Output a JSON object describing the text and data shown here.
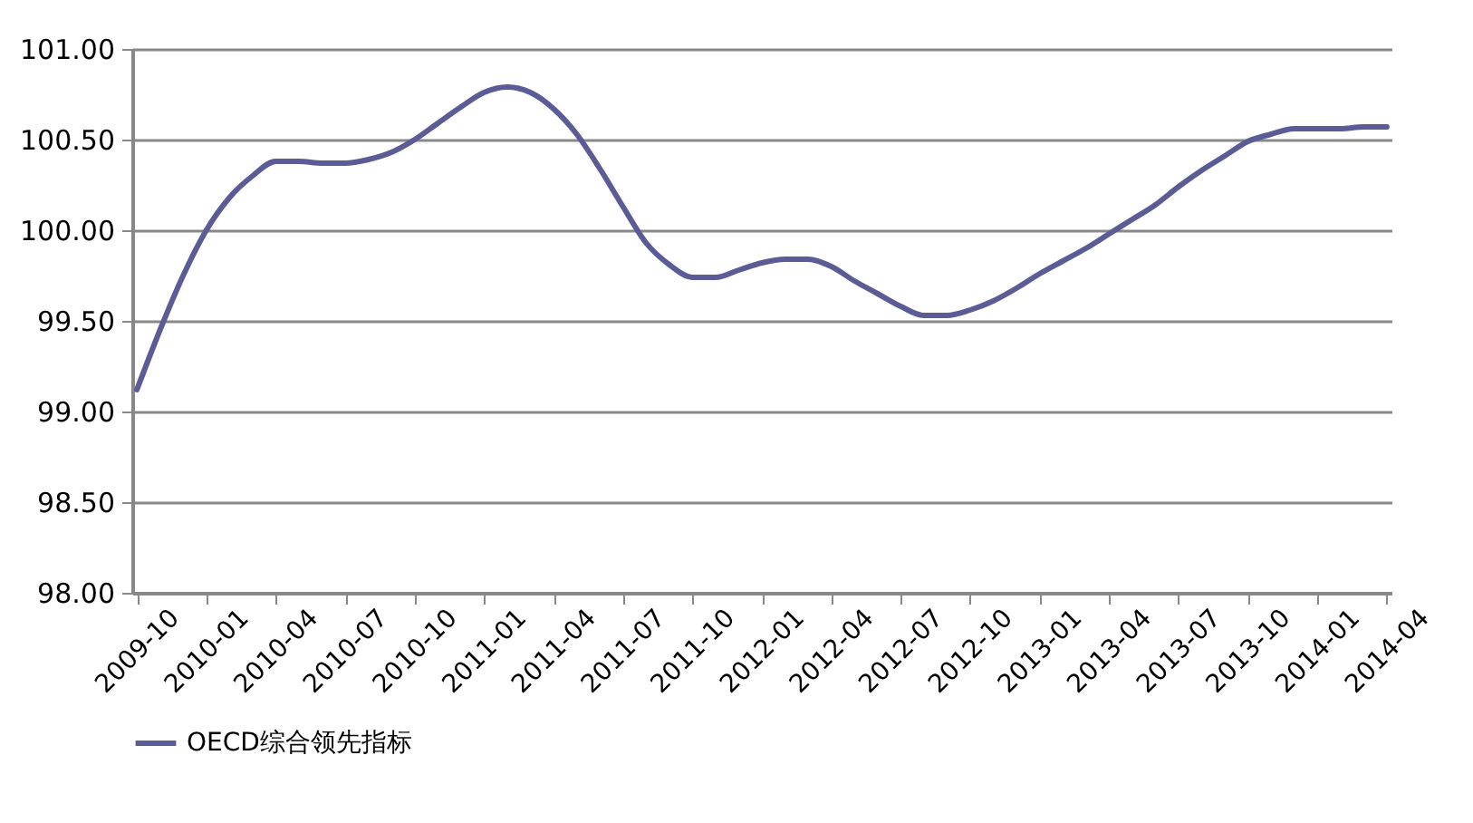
{
  "chart_data": {
    "type": "line",
    "categories": [
      "2009-10",
      null,
      null,
      "2010-01",
      null,
      null,
      "2010-04",
      null,
      null,
      "2010-07",
      null,
      null,
      "2010-10",
      null,
      null,
      "2011-01",
      null,
      null,
      "2011-04",
      null,
      null,
      "2011-07",
      null,
      null,
      "2011-10",
      null,
      null,
      "2012-01",
      null,
      null,
      "2012-04",
      null,
      null,
      "2012-07",
      null,
      null,
      "2012-10",
      null,
      null,
      "2013-01",
      null,
      null,
      "2013-04",
      null,
      null,
      "2013-07",
      null,
      null,
      "2013-10",
      null,
      null,
      "2014-01",
      null,
      null,
      "2014-04"
    ],
    "series": [
      {
        "name": "OECD综合领先指标",
        "color": "#5b5b96",
        "values": [
          99.12,
          99.45,
          99.75,
          100.0,
          100.18,
          100.3,
          100.38,
          100.38,
          100.37,
          100.37,
          100.39,
          100.43,
          100.5,
          100.59,
          100.68,
          100.76,
          100.79,
          100.76,
          100.67,
          100.53,
          100.34,
          100.13,
          99.93,
          99.81,
          99.74,
          99.74,
          99.78,
          99.82,
          99.84,
          99.84,
          99.8,
          99.72,
          99.65,
          99.58,
          99.53,
          99.53,
          99.56,
          99.61,
          99.68,
          99.76,
          99.83,
          99.9,
          99.98,
          100.06,
          100.14,
          100.24,
          100.33,
          100.41,
          100.49,
          100.53,
          100.56,
          100.56,
          100.56,
          100.57,
          100.57
        ]
      }
    ],
    "ylim": [
      98,
      101
    ],
    "yticks": [
      {
        "value": 98,
        "label": "98.00"
      },
      {
        "value": 98.5,
        "label": "98.50"
      },
      {
        "value": 99,
        "label": "99.00"
      },
      {
        "value": 99.5,
        "label": "99.50"
      },
      {
        "value": 100,
        "label": "100.00"
      },
      {
        "value": 100.5,
        "label": "100.50"
      },
      {
        "value": 101,
        "label": "101.00"
      }
    ],
    "grid": "y",
    "legend": "bottom",
    "marker": "none",
    "line_style": "solid"
  }
}
